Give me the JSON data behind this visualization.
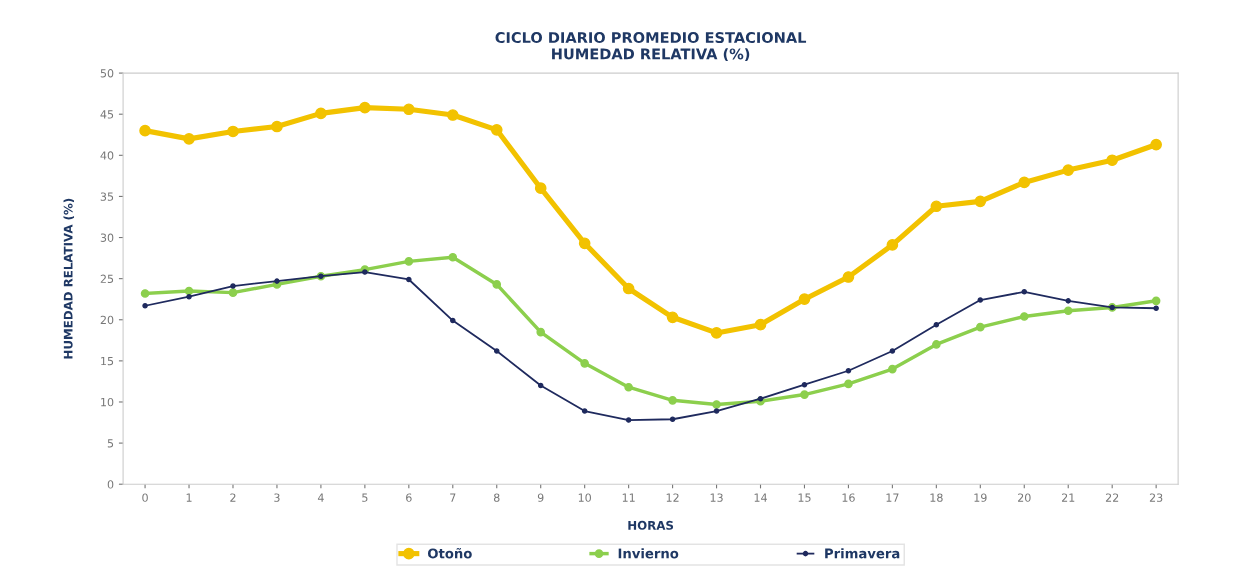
{
  "chart_data": {
    "type": "line",
    "title": "CICLO DIARIO PROMEDIO ESTACIONAL\nHUMEDAD RELATIVA (%)",
    "xlabel": "HORAS",
    "ylabel": "HUMEDAD RELATIVA (%)",
    "categories": [
      "0",
      "1",
      "2",
      "3",
      "4",
      "5",
      "6",
      "7",
      "8",
      "9",
      "10",
      "11",
      "12",
      "13",
      "14",
      "15",
      "16",
      "17",
      "18",
      "19",
      "20",
      "21",
      "22",
      "23"
    ],
    "series": [
      {
        "name": "Otoño",
        "color": "#f2c200",
        "values": [
          43.0,
          42.0,
          42.9,
          43.5,
          45.1,
          45.8,
          45.6,
          44.9,
          43.1,
          36.0,
          29.3,
          23.8,
          20.3,
          18.4,
          19.4,
          22.5,
          25.2,
          29.1,
          33.8,
          34.4,
          36.7,
          38.2,
          39.4,
          41.3
        ]
      },
      {
        "name": "Invierno",
        "color": "#8ccf4d",
        "values": [
          23.2,
          23.5,
          23.3,
          24.3,
          25.3,
          26.1,
          27.1,
          27.6,
          24.3,
          18.5,
          14.7,
          11.8,
          10.2,
          9.7,
          10.1,
          10.9,
          12.2,
          14.0,
          17.0,
          19.1,
          20.4,
          21.1,
          21.5,
          22.3
        ]
      },
      {
        "name": "Primavera",
        "color": "#1f2a5e",
        "values": [
          21.7,
          22.8,
          24.1,
          24.7,
          25.3,
          25.8,
          24.9,
          19.9,
          16.2,
          12.0,
          8.9,
          7.8,
          7.9,
          8.9,
          10.4,
          12.1,
          13.8,
          16.2,
          19.4,
          22.4,
          23.4,
          22.3,
          21.5,
          21.4
        ]
      }
    ],
    "ylim": [
      0,
      50
    ],
    "yticks": [
      0,
      5,
      10,
      15,
      20,
      25,
      30,
      35,
      40,
      45,
      50
    ],
    "grid": false,
    "legend": "bottom",
    "marker": "circle",
    "line_style": "solid"
  }
}
